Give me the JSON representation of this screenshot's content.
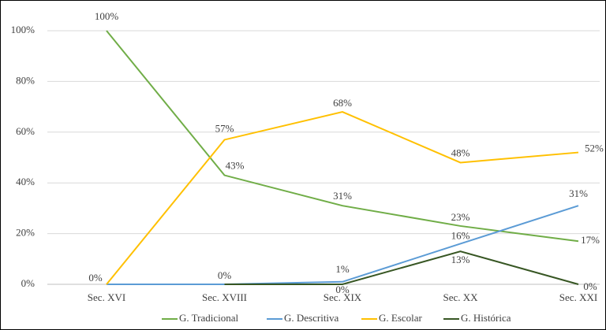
{
  "chart_data": {
    "type": "line",
    "categories": [
      "Sec. XVI",
      "Sec. XVIII",
      "Sec. XIX",
      "Sec. XX",
      "Sec. XXI"
    ],
    "series": [
      {
        "name": "G. Tradicional",
        "color": "#70ad47",
        "values": [
          100,
          43,
          31,
          23,
          17
        ],
        "value_labels": [
          "100%",
          "43%",
          "31%",
          "23%",
          "17%"
        ]
      },
      {
        "name": "G. Descritiva",
        "color": "#5b9bd5",
        "values": [
          0,
          0,
          1,
          16,
          31
        ],
        "value_labels": [
          null,
          "0%",
          "1%",
          "16%",
          "31%"
        ]
      },
      {
        "name": "G. Escolar",
        "color": "#ffc000",
        "values": [
          0,
          57,
          68,
          48,
          52
        ],
        "value_labels": [
          "0%",
          "57%",
          "68%",
          "48%",
          "52%"
        ]
      },
      {
        "name": "G. Histórica",
        "color": "#375623",
        "values": [
          null,
          0,
          0,
          13,
          0
        ],
        "value_labels": [
          null,
          null,
          "0%",
          "13%",
          "0%"
        ]
      }
    ],
    "ylim": [
      0,
      100
    ],
    "yticks": [
      {
        "value": 0,
        "label": "0%"
      },
      {
        "value": 20,
        "label": "20%"
      },
      {
        "value": 40,
        "label": "40%"
      },
      {
        "value": 60,
        "label": "60%"
      },
      {
        "value": 80,
        "label": "80%"
      },
      {
        "value": 100,
        "label": "100%"
      }
    ],
    "grid": true,
    "legend": "bottom"
  }
}
